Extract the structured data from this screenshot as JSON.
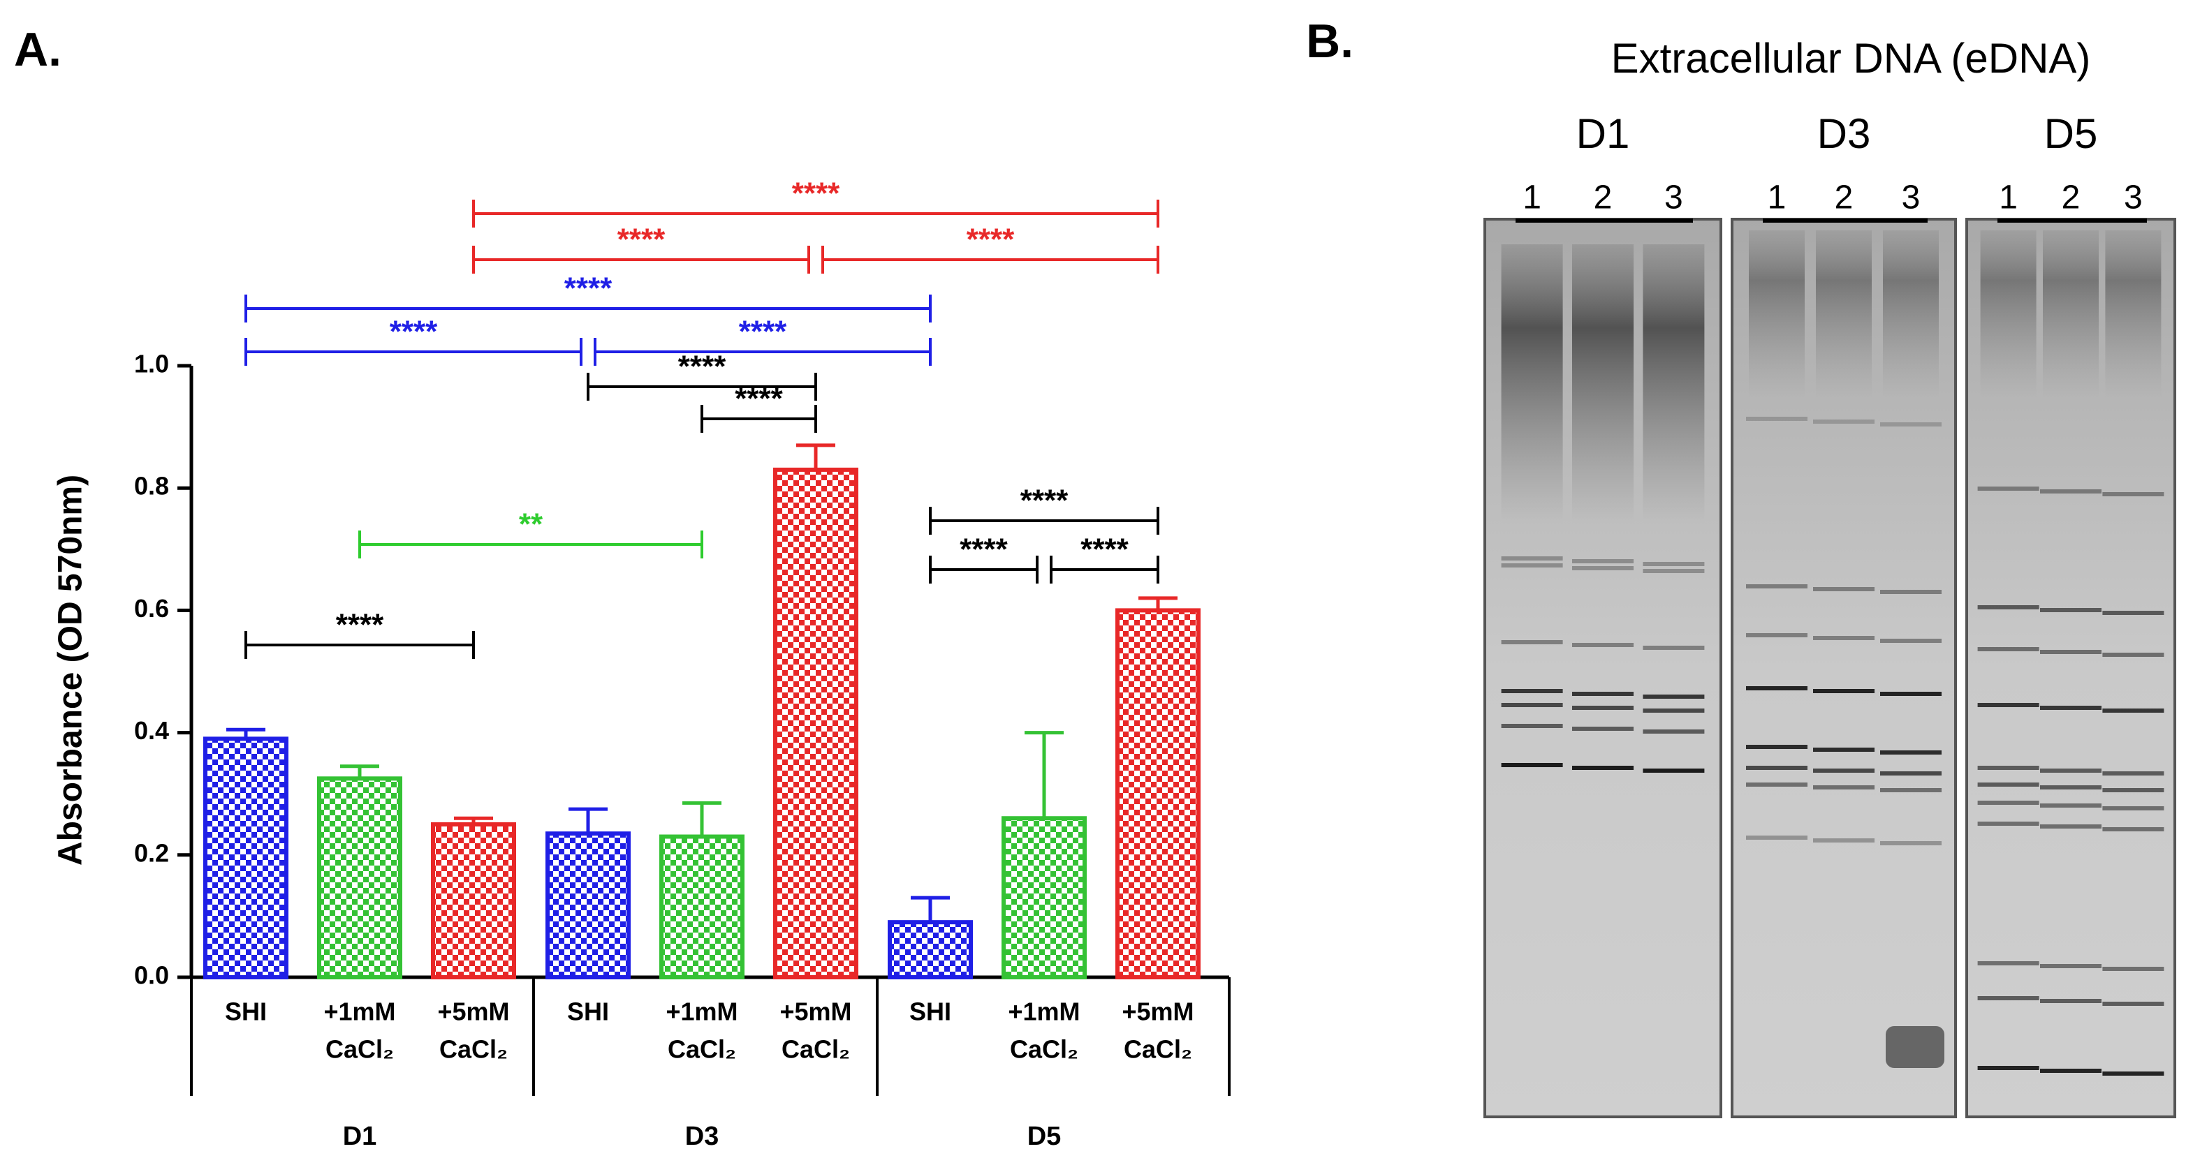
{
  "panels": {
    "a": "A.",
    "b": "B."
  },
  "chart_data": {
    "type": "grouped_bar",
    "ylabel": "Absorbance (OD 570nm)",
    "groups": [
      "D1",
      "D3",
      "D5"
    ],
    "series": [
      {
        "name": [
          "SHI"
        ],
        "color": "#1f1fe6",
        "values": [
          0.39,
          0.235,
          0.09
        ],
        "errors": [
          0.015,
          0.04,
          0.04
        ]
      },
      {
        "name": [
          "+1mM",
          "CaCl₂"
        ],
        "color": "#34c234",
        "values": [
          0.325,
          0.23,
          0.26
        ],
        "errors": [
          0.02,
          0.055,
          0.14
        ]
      },
      {
        "name": [
          "+5mM",
          "CaCl₂"
        ],
        "color": "#e82828",
        "values": [
          0.25,
          0.83,
          0.6
        ],
        "errors": [
          0.01,
          0.04,
          0.02
        ]
      }
    ],
    "ylim": [
      0,
      1
    ],
    "yticks": [
      {
        "value": 0,
        "label": "0.0"
      },
      0.2,
      0.4,
      0.6,
      0.8,
      {
        "value": 1,
        "label": "1.0"
      }
    ],
    "significance": [
      {
        "label": "****",
        "color": "#000000",
        "from": 0,
        "to": 2
      },
      {
        "label": "**",
        "color": "#2ecc2e",
        "from": 1,
        "to": 4
      },
      {
        "label": "****",
        "color": "#000000",
        "from": 3,
        "to": 5
      },
      {
        "label": "****",
        "color": "#000000",
        "from": 4,
        "to": 5
      },
      {
        "label": "****",
        "color": "#1f1fe6",
        "from": 0,
        "to": 3
      },
      {
        "label": "****",
        "color": "#1f1fe6",
        "from": 3,
        "to": 6
      },
      {
        "label": "****",
        "color": "#1f1fe6",
        "from": 0,
        "to": 6
      },
      {
        "label": "****",
        "color": "#e82828",
        "from": 2,
        "to": 5
      },
      {
        "label": "****",
        "color": "#e82828",
        "from": 5,
        "to": 8
      },
      {
        "label": "****",
        "color": "#e82828",
        "from": 2,
        "to": 8
      },
      {
        "label": "****",
        "color": "#000000",
        "from": 6,
        "to": 8
      },
      {
        "label": "****",
        "color": "#000000",
        "from": 6,
        "to": 7
      },
      {
        "label": "****",
        "color": "#000000",
        "from": 7,
        "to": 8
      }
    ]
  },
  "gel": {
    "title": "Extracellular DNA (eDNA)",
    "lanes": [
      {
        "name": "D1",
        "numbers": [
          "1",
          "2",
          "3"
        ]
      },
      {
        "name": "D3",
        "numbers": [
          "1",
          "2",
          "3"
        ]
      },
      {
        "name": "D5",
        "numbers": [
          "1",
          "2",
          "3"
        ]
      }
    ]
  }
}
